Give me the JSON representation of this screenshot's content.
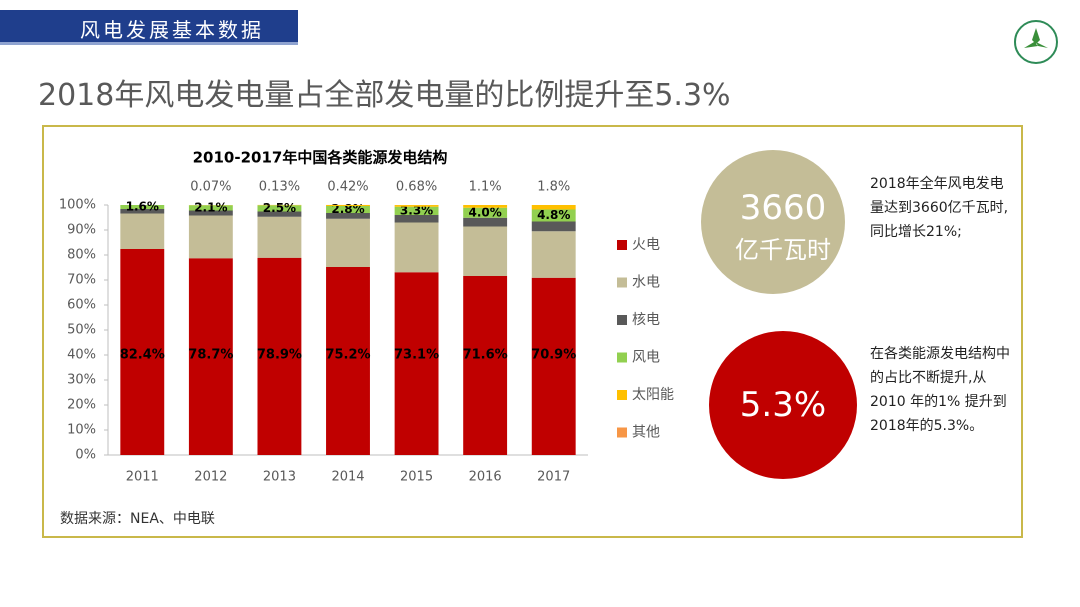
{
  "header": {
    "section": "风电发展基本数据",
    "title": "2018年风电发电量占全部发电量的比例提升至5.3%"
  },
  "highlights": [
    {
      "value": "3660",
      "unit": "亿千瓦时",
      "text": "2018年全年风电发电量达到3660亿千瓦时,同比增长21%;"
    },
    {
      "value": "5.3%",
      "text": "在各类能源发电结构中的占比不断提升,从 2010 年的1% 提升到2018年的5.3%。"
    }
  ],
  "chart_data": {
    "type": "stacked_bar",
    "title": "2010-2017年中国各类能源发电结构",
    "source": "数据来源：NEA、中电联",
    "categories": [
      "2011",
      "2012",
      "2013",
      "2014",
      "2015",
      "2016",
      "2017"
    ],
    "series": [
      {
        "name": "火电",
        "color": "#c00000",
        "values": [
          82.4,
          78.7,
          78.9,
          75.2,
          73.1,
          71.6,
          70.9
        ],
        "value_labels": [
          "82.4%",
          "78.7%",
          "78.9%",
          "75.2%",
          "73.1%",
          "71.6%",
          "70.9%"
        ]
      },
      {
        "name": "水电",
        "color": "#c4bd97",
        "values": [
          14.2,
          17.1,
          16.4,
          19.3,
          19.9,
          19.8,
          18.6
        ]
      },
      {
        "name": "核电",
        "color": "#595959",
        "values": [
          1.8,
          2.0,
          2.1,
          2.3,
          3.0,
          3.5,
          3.9
        ]
      },
      {
        "name": "风电",
        "color": "#92d050",
        "values": [
          1.6,
          2.1,
          2.5,
          2.8,
          3.3,
          4.0,
          4.8
        ],
        "value_labels": [
          "1.6%",
          "2.1%",
          "2.5%",
          "2.8%",
          "3.3%",
          "4.0%",
          "4.8%"
        ]
      },
      {
        "name": "太阳能",
        "color": "#ffc000",
        "values": [
          0,
          0.07,
          0.13,
          0.42,
          0.68,
          1.1,
          1.8
        ],
        "value_labels": [
          null,
          "0.07%",
          "0.13%",
          "0.42%",
          "0.68%",
          "1.1%",
          "1.8%"
        ]
      },
      {
        "name": "其他",
        "color": "#f79646",
        "values": [
          0,
          0,
          0,
          0,
          0,
          0,
          0
        ]
      }
    ],
    "ylim": [
      0,
      100
    ],
    "yticks": [
      {
        "value": 0,
        "label": "0%"
      },
      {
        "value": 10,
        "label": "10%"
      },
      {
        "value": 20,
        "label": "20%"
      },
      {
        "value": 30,
        "label": "30%"
      },
      {
        "value": 40,
        "label": "40%"
      },
      {
        "value": 50,
        "label": "50%"
      },
      {
        "value": 60,
        "label": "60%"
      },
      {
        "value": 70,
        "label": "70%"
      },
      {
        "value": 80,
        "label": "80%"
      },
      {
        "value": 90,
        "label": "90%"
      },
      {
        "value": 100,
        "label": "100%"
      }
    ],
    "legend": "right"
  }
}
